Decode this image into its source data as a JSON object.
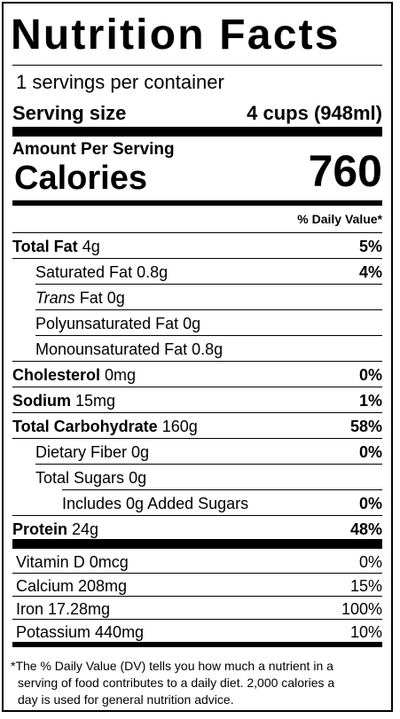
{
  "title": "Nutrition Facts",
  "servings_per_container": "1 servings per container",
  "serving_size_label": "Serving size",
  "serving_size_value": "4 cups (948ml)",
  "amount_per_serving": "Amount Per Serving",
  "calories_label": "Calories",
  "calories_value": "760",
  "daily_value_header": "% Daily Value*",
  "nutrients": {
    "total_fat": {
      "label": "Total Fat",
      "amount": "4g",
      "dv": "5%"
    },
    "saturated_fat": {
      "label": "Saturated Fat",
      "amount": "0.8g",
      "dv": "4%"
    },
    "trans_fat": {
      "label_italic": "Trans",
      "label": "Fat",
      "amount": "0g"
    },
    "polyunsaturated_fat": {
      "label": "Polyunsaturated Fat",
      "amount": "0g"
    },
    "monounsaturated_fat": {
      "label": "Monounsaturated Fat",
      "amount": "0.8g"
    },
    "cholesterol": {
      "label": "Cholesterol",
      "amount": "0mg",
      "dv": "0%"
    },
    "sodium": {
      "label": "Sodium",
      "amount": "15mg",
      "dv": "1%"
    },
    "total_carbohydrate": {
      "label": "Total Carbohydrate",
      "amount": "160g",
      "dv": "58%"
    },
    "dietary_fiber": {
      "label": "Dietary Fiber",
      "amount": "0g",
      "dv": "0%"
    },
    "total_sugars": {
      "label": "Total Sugars",
      "amount": "0g"
    },
    "added_sugars": {
      "label": "Includes 0g Added Sugars",
      "dv": "0%"
    },
    "protein": {
      "label": "Protein",
      "amount": "24g",
      "dv": "48%"
    }
  },
  "vitamins": [
    {
      "label": "Vitamin D 0mcg",
      "dv": "0%"
    },
    {
      "label": "Calcium 208mg",
      "dv": "15%"
    },
    {
      "label": "Iron 17.28mg",
      "dv": "100%"
    },
    {
      "label": "Potassium 440mg",
      "dv": "10%"
    }
  ],
  "footnote": [
    "*The % Daily Value (DV) tells you how much a nutrient in a",
    "serving of food contributes to a daily diet. 2,000 calories a",
    "day is used for general nutrition advice."
  ]
}
